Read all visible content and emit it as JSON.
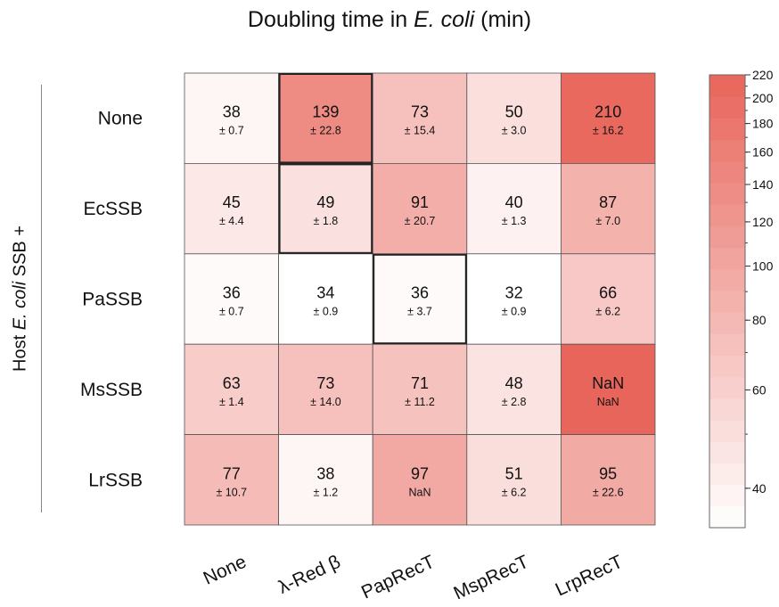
{
  "chart_data": {
    "type": "heatmap",
    "title_parts": {
      "prefix": "Doubling time in ",
      "italic": "E. coli",
      "suffix": " (min)"
    },
    "ylabel_parts": {
      "prefix": "Host ",
      "italic": "E. coli",
      "suffix": " SSB +"
    },
    "rows": [
      "None",
      "EcSSB",
      "PaSSB",
      "MsSSB",
      "LrSSB"
    ],
    "columns": [
      "None",
      "λ-Red β",
      "PapRecT",
      "MspRecT",
      "LrpRecT"
    ],
    "values": [
      [
        "38",
        "139",
        "73",
        "50",
        "210"
      ],
      [
        "45",
        "49",
        "91",
        "40",
        "87"
      ],
      [
        "36",
        "34",
        "36",
        "32",
        "66"
      ],
      [
        "63",
        "73",
        "71",
        "48",
        "NaN"
      ],
      [
        "77",
        "38",
        "97",
        "51",
        "95"
      ]
    ],
    "errors": [
      [
        "± 0.7",
        "± 22.8",
        "± 15.4",
        "± 3.0",
        "± 16.2"
      ],
      [
        "± 4.4",
        "± 1.8",
        "± 20.7",
        "± 1.3",
        "± 7.0"
      ],
      [
        "± 0.7",
        "± 0.9",
        "± 3.7",
        "± 0.9",
        "± 6.2"
      ],
      [
        "± 1.4",
        "± 14.0",
        "± 11.2",
        "± 2.8",
        "NaN"
      ],
      [
        "± 10.7",
        "± 1.2",
        "NaN",
        "± 6.2",
        "± 22.6"
      ]
    ],
    "outlined_cells": [
      [
        0,
        1
      ],
      [
        1,
        1
      ],
      [
        2,
        2
      ]
    ],
    "colorbar": {
      "scale": "log",
      "range": [
        34,
        220
      ],
      "ticks": [
        40,
        60,
        80,
        100,
        120,
        140,
        160,
        180,
        200,
        220
      ],
      "tick_labels": [
        "40",
        "60",
        "80",
        "100",
        "120",
        "140",
        "160",
        "180",
        "200",
        "220"
      ],
      "color_low": "#ffffff",
      "color_high": "#e8655b",
      "nan_color": "#e8655b"
    },
    "grid": true
  }
}
